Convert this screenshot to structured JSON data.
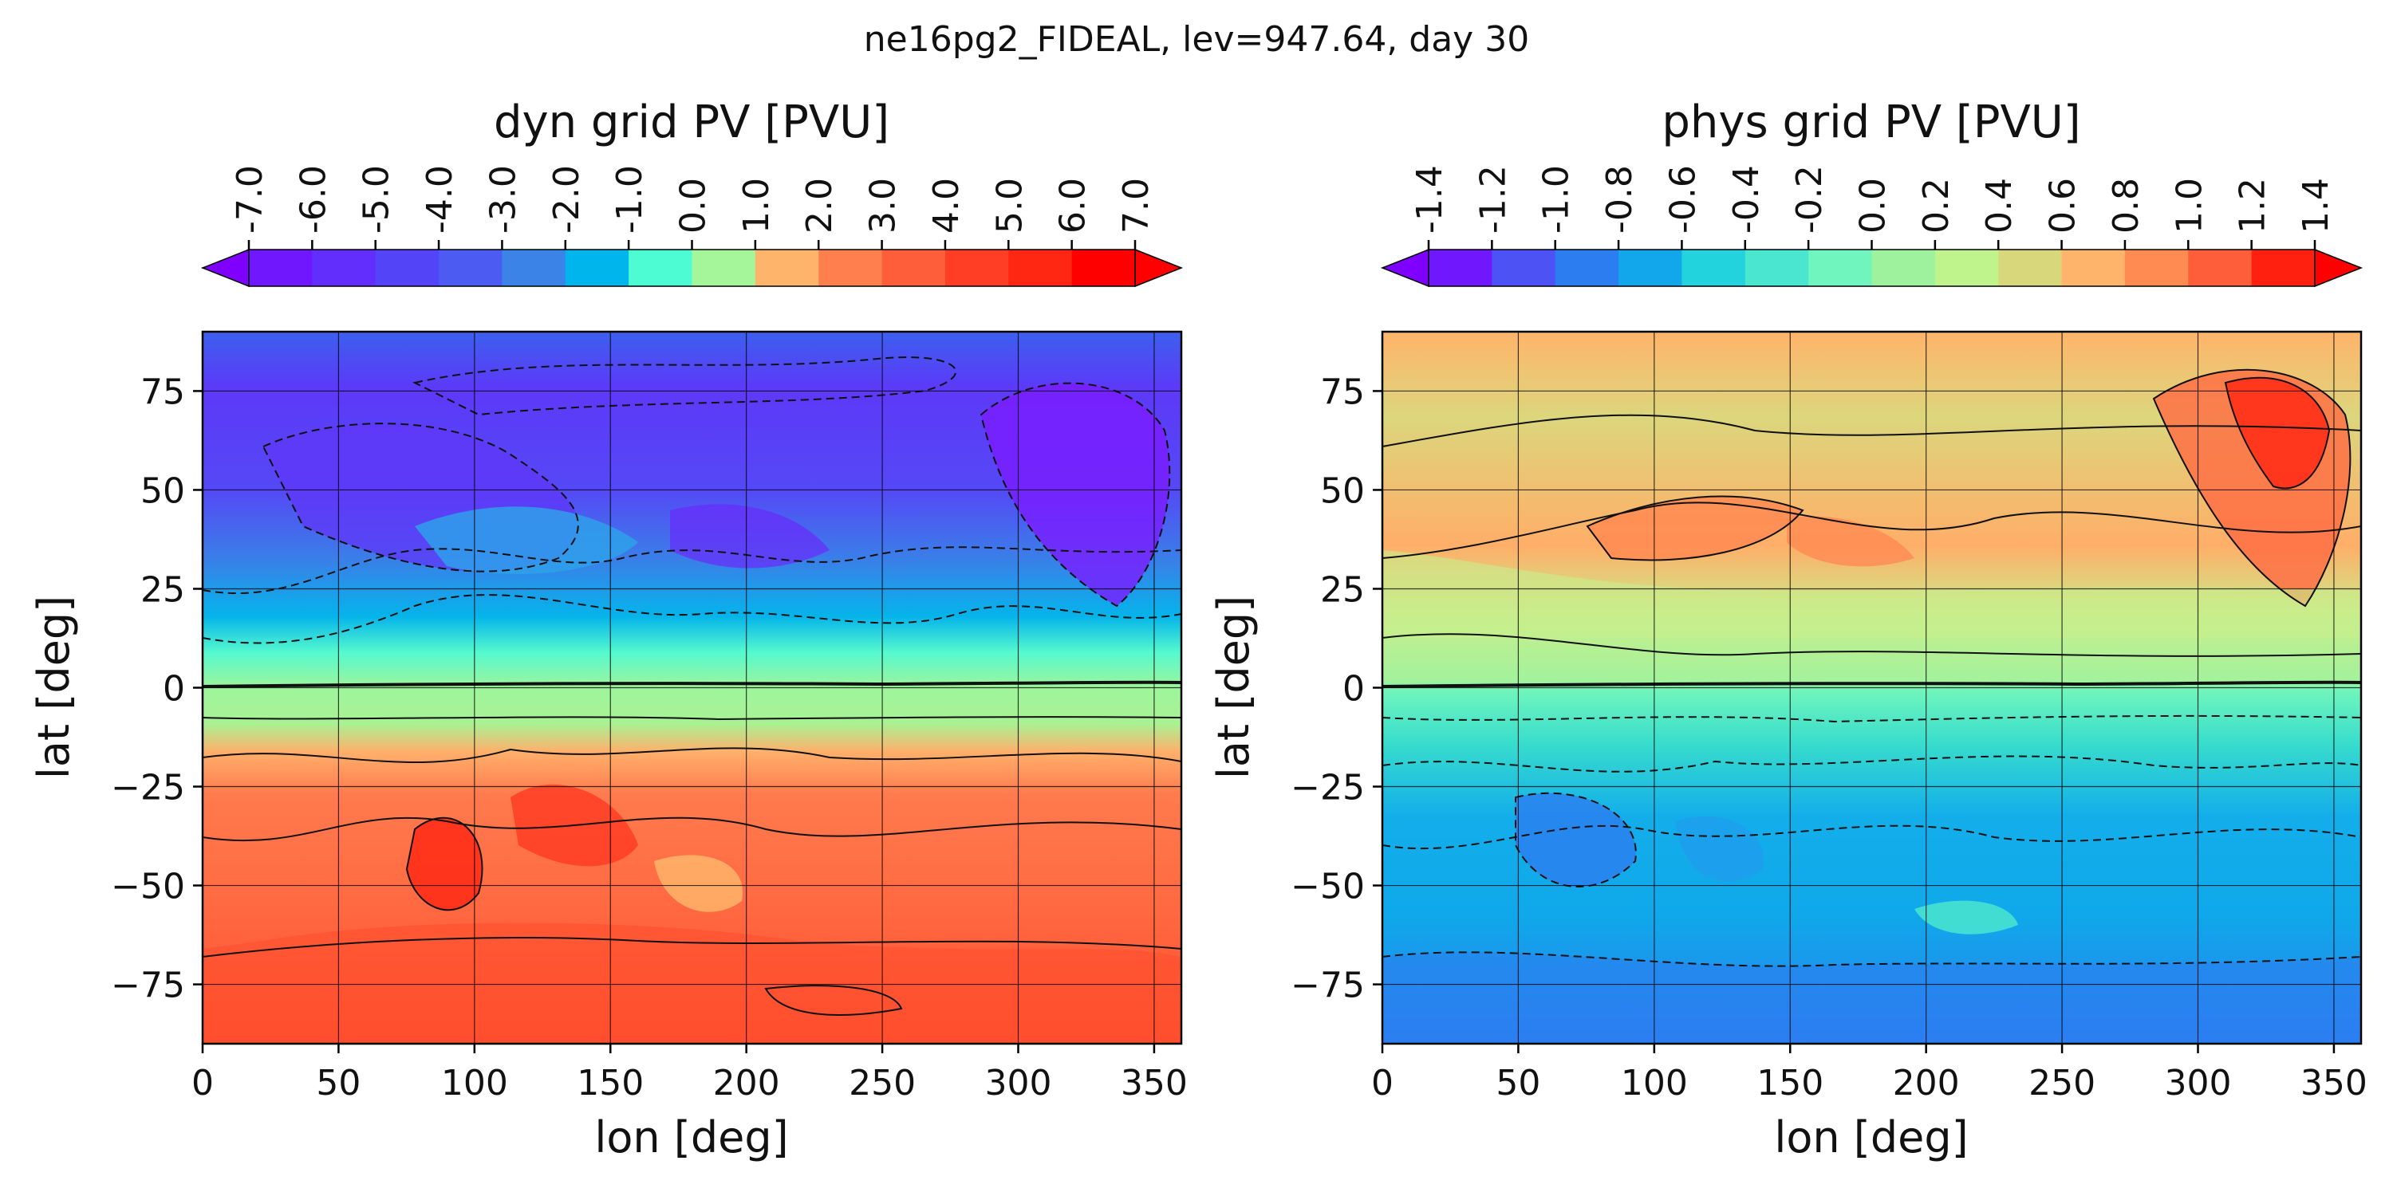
{
  "figure": {
    "suptitle": "ne16pg2_FIDEAL, lev=947.64, day 30"
  },
  "chart_data": [
    {
      "type": "heatmap",
      "title": "dyn grid PV [PVU]",
      "xlabel": "lon [deg]",
      "ylabel": "lat [deg]",
      "xlim": [
        0,
        360
      ],
      "ylim": [
        -90,
        90
      ],
      "xticks": [
        0,
        50,
        100,
        150,
        200,
        250,
        300,
        350
      ],
      "yticks": [
        75,
        50,
        25,
        0,
        -25,
        -50,
        -75
      ],
      "grid": true,
      "colorbar": {
        "position": "top",
        "extend": "both",
        "ticks": [
          "-7.0",
          "-6.0",
          "-5.0",
          "-4.0",
          "-3.0",
          "-2.0",
          "-1.0",
          "0.0",
          "1.0",
          "2.0",
          "3.0",
          "4.0",
          "5.0",
          "6.0",
          "7.0"
        ],
        "colors": [
          "#8000ff",
          "#7117fe",
          "#622efc",
          "#5444f7",
          "#4c5cf2",
          "#3c83e8",
          "#00b5eb",
          "#4efcd3",
          "#a5f59a",
          "#ffb46b",
          "#ff7f4e",
          "#ff5e3b",
          "#ff3e25",
          "#ff2612",
          "#ff0000"
        ]
      },
      "field": {
        "northern_hemisphere_range": [
          -7.0,
          -1.0
        ],
        "equatorial_band": [
          -1.0,
          1.0
        ],
        "southern_hemisphere_range": [
          1.0,
          7.0
        ]
      }
    },
    {
      "type": "heatmap",
      "title": "phys grid PV [PVU]",
      "xlabel": "lon [deg]",
      "ylabel": "lat [deg]",
      "xlim": [
        0,
        360
      ],
      "ylim": [
        -90,
        90
      ],
      "xticks": [
        0,
        50,
        100,
        150,
        200,
        250,
        300,
        350
      ],
      "yticks": [
        75,
        50,
        25,
        0,
        -25,
        -50,
        -75
      ],
      "grid": true,
      "colorbar": {
        "position": "top",
        "extend": "both",
        "ticks": [
          "-1.4",
          "-1.2",
          "-1.0",
          "-0.8",
          "-0.6",
          "-0.4",
          "-0.2",
          "0.0",
          "0.2",
          "0.4",
          "0.6",
          "0.8",
          "1.0",
          "1.2",
          "1.4"
        ],
        "colors": [
          "#8000ff",
          "#7117fe",
          "#4d52f5",
          "#2c7ef0",
          "#12a6eb",
          "#22d2dc",
          "#4ae6cf",
          "#6ff5bd",
          "#9ef29e",
          "#bff38c",
          "#d8d77c",
          "#ffb46b",
          "#ff8a52",
          "#ff5e3b",
          "#ff2010",
          "#ff0000"
        ]
      },
      "field": {
        "northern_hemisphere_range": [
          0.0,
          1.4
        ],
        "southern_hemisphere_range": [
          -1.4,
          0.0
        ]
      }
    }
  ]
}
